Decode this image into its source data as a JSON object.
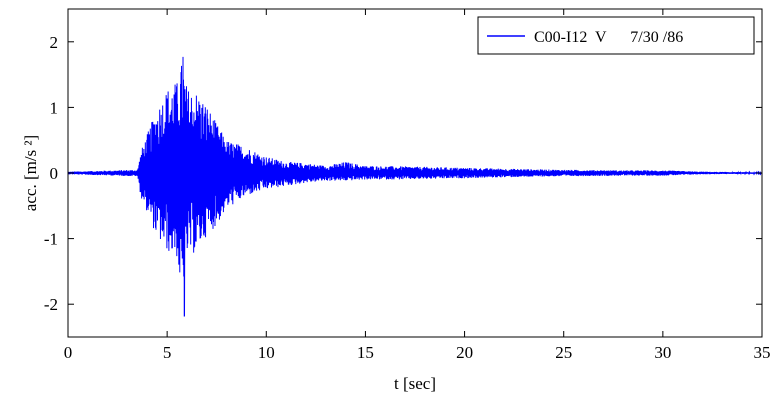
{
  "chart_data": {
    "type": "line",
    "title": "",
    "xlabel": "t [sec]",
    "ylabel": "acc. [m/s ²]",
    "xlim": [
      0,
      35
    ],
    "ylim": [
      -2.5,
      2.5
    ],
    "xticks": [
      0,
      5,
      10,
      15,
      20,
      25,
      30,
      35
    ],
    "yticks": [
      -2,
      -1,
      0,
      1,
      2
    ],
    "grid": false,
    "legend_position": "top-right",
    "legend": [
      "C00-I12  V      7/30 /86"
    ],
    "line_color": "#0000ff",
    "series": [
      {
        "name": "C00-I12  V      7/30 /86",
        "description_of_shape": "strong-motion vertical acceleration record",
        "envelope": {
          "t": [
            0.0,
            3.5,
            3.7,
            4.0,
            4.5,
            5.0,
            5.5,
            5.8,
            6.0,
            6.5,
            7.0,
            7.5,
            8.0,
            8.5,
            9.0,
            10.0,
            11.0,
            12.0,
            13.0,
            14.0,
            15.0,
            17.0,
            20.0,
            23.0,
            25.0,
            28.0,
            30.0,
            32.0,
            35.0
          ],
          "upper": [
            0.02,
            0.05,
            0.35,
            0.6,
            1.0,
            1.3,
            1.4,
            1.77,
            1.3,
            1.25,
            1.05,
            0.75,
            0.5,
            0.45,
            0.4,
            0.25,
            0.17,
            0.15,
            0.11,
            0.17,
            0.11,
            0.1,
            0.08,
            0.06,
            0.05,
            0.04,
            0.04,
            0.02,
            0.01
          ],
          "lower": [
            -0.02,
            -0.05,
            -0.4,
            -0.6,
            -1.0,
            -1.2,
            -1.3,
            -2.18,
            -1.3,
            -1.2,
            -0.95,
            -0.8,
            -0.55,
            -0.45,
            -0.35,
            -0.25,
            -0.2,
            -0.15,
            -0.12,
            -0.12,
            -0.1,
            -0.1,
            -0.08,
            -0.06,
            -0.05,
            -0.04,
            -0.04,
            -0.02,
            -0.01
          ]
        },
        "peak_max": {
          "t": 5.8,
          "value": 1.77
        },
        "peak_min": {
          "t": 5.87,
          "value": -2.18
        }
      }
    ]
  }
}
